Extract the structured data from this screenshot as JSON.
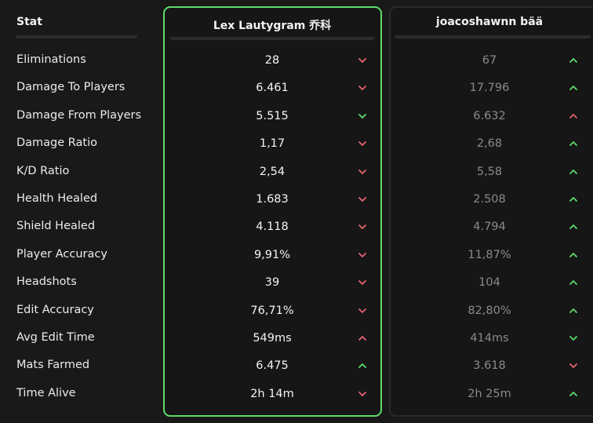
{
  "header": {
    "stat": "Stat",
    "players": [
      "Lex Lautygram 乔科",
      "joacoshawnn bää"
    ]
  },
  "colors": {
    "red": "#e5646e",
    "green": "#5fdc6a"
  },
  "rows": [
    {
      "stat": "Eliminations",
      "values": [
        "28",
        "67"
      ],
      "arrows": [
        {
          "dir": "down",
          "color": "red"
        },
        {
          "dir": "up",
          "color": "green"
        }
      ]
    },
    {
      "stat": "Damage To Players",
      "values": [
        "6.461",
        "17.796"
      ],
      "arrows": [
        {
          "dir": "down",
          "color": "red"
        },
        {
          "dir": "up",
          "color": "green"
        }
      ]
    },
    {
      "stat": "Damage From Players",
      "values": [
        "5.515",
        "6.632"
      ],
      "arrows": [
        {
          "dir": "down",
          "color": "green"
        },
        {
          "dir": "up",
          "color": "red"
        }
      ]
    },
    {
      "stat": "Damage Ratio",
      "values": [
        "1,17",
        "2,68"
      ],
      "arrows": [
        {
          "dir": "down",
          "color": "red"
        },
        {
          "dir": "up",
          "color": "green"
        }
      ]
    },
    {
      "stat": "K/D Ratio",
      "values": [
        "2,54",
        "5,58"
      ],
      "arrows": [
        {
          "dir": "down",
          "color": "red"
        },
        {
          "dir": "up",
          "color": "green"
        }
      ]
    },
    {
      "stat": "Health Healed",
      "values": [
        "1.683",
        "2.508"
      ],
      "arrows": [
        {
          "dir": "down",
          "color": "red"
        },
        {
          "dir": "up",
          "color": "green"
        }
      ]
    },
    {
      "stat": "Shield Healed",
      "values": [
        "4.118",
        "4.794"
      ],
      "arrows": [
        {
          "dir": "down",
          "color": "red"
        },
        {
          "dir": "up",
          "color": "green"
        }
      ]
    },
    {
      "stat": "Player Accuracy",
      "values": [
        "9,91%",
        "11,87%"
      ],
      "arrows": [
        {
          "dir": "down",
          "color": "red"
        },
        {
          "dir": "up",
          "color": "green"
        }
      ]
    },
    {
      "stat": "Headshots",
      "values": [
        "39",
        "104"
      ],
      "arrows": [
        {
          "dir": "down",
          "color": "red"
        },
        {
          "dir": "up",
          "color": "green"
        }
      ]
    },
    {
      "stat": "Edit Accuracy",
      "values": [
        "76,71%",
        "82,80%"
      ],
      "arrows": [
        {
          "dir": "down",
          "color": "red"
        },
        {
          "dir": "up",
          "color": "green"
        }
      ]
    },
    {
      "stat": "Avg Edit Time",
      "values": [
        "549ms",
        "414ms"
      ],
      "arrows": [
        {
          "dir": "up",
          "color": "red"
        },
        {
          "dir": "down",
          "color": "green"
        }
      ]
    },
    {
      "stat": "Mats Farmed",
      "values": [
        "6.475",
        "3.618"
      ],
      "arrows": [
        {
          "dir": "up",
          "color": "green"
        },
        {
          "dir": "down",
          "color": "red"
        }
      ]
    },
    {
      "stat": "Time Alive",
      "values": [
        "2h 14m",
        "2h 25m"
      ],
      "arrows": [
        {
          "dir": "down",
          "color": "red"
        },
        {
          "dir": "up",
          "color": "green"
        }
      ]
    }
  ]
}
